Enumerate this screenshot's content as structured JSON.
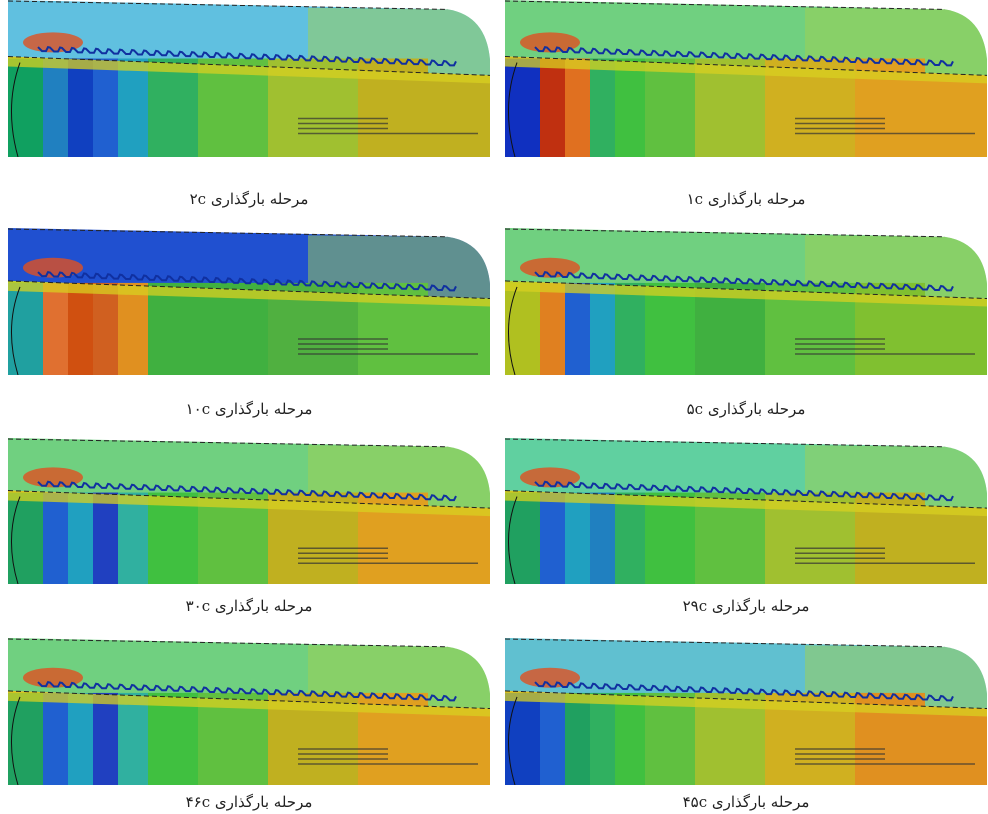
{
  "panels": [
    {
      "caption": "مرحله بارگذاری ۱c"
    },
    {
      "caption": "مرحله بارگذاری ۲c"
    },
    {
      "caption": "مرحله بارگذاری ۵c"
    },
    {
      "caption": "مرحله بارگذاری ۱۰c"
    },
    {
      "caption": "مرحله بارگذاری ۲۹c"
    },
    {
      "caption": "مرحله بارگذاری ۳۰c"
    },
    {
      "caption": "مرحله بارگذاری ۴۵c"
    },
    {
      "caption": "مرحله بارگذاری ۴۶c"
    }
  ]
}
